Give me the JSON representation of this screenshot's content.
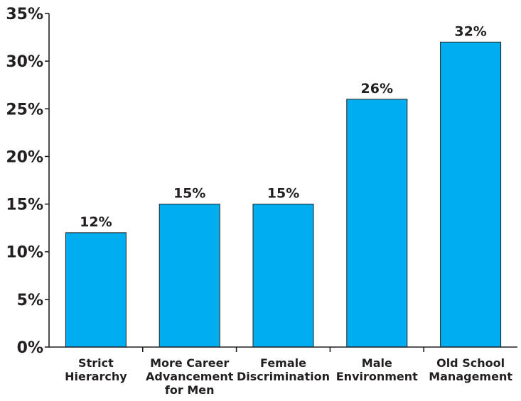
{
  "chart_data": {
    "type": "bar",
    "title": "",
    "xlabel": "",
    "ylabel": "",
    "categories": [
      [
        "Strict",
        "Hierarchy"
      ],
      [
        "More Career",
        "Advancement",
        "for Men"
      ],
      [
        "Female",
        "Discrimination"
      ],
      [
        "Male",
        "Environment"
      ],
      [
        "Old School",
        "Management"
      ]
    ],
    "values": [
      12,
      15,
      15,
      26,
      32
    ],
    "value_labels": [
      "12%",
      "15%",
      "15%",
      "26%",
      "32%"
    ],
    "ylim": [
      0,
      35
    ],
    "yticks": [
      0,
      5,
      10,
      15,
      20,
      25,
      30,
      35
    ],
    "ytick_labels": [
      "0%",
      "5%",
      "10%",
      "15%",
      "20%",
      "25%",
      "30%",
      "35%"
    ],
    "grid": false,
    "legend": "none",
    "bar_color": "#00aeef"
  }
}
